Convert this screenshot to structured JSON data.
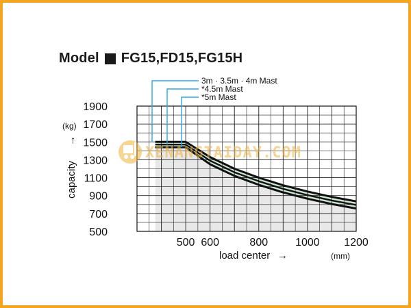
{
  "title": {
    "prefix": "Model",
    "models": "FG15,FD15,FG15H"
  },
  "watermark": "XENANGTAIDAY.COM",
  "colors": {
    "frame": "#f3a51f",
    "band_fill": "#cfe6d3",
    "below_fill": "#e8e8e8",
    "mast_line": "#29a8e0",
    "curve": "#111111"
  },
  "chart_data": {
    "type": "line",
    "title": "",
    "ylabel": "capacity",
    "yunit": "(kg)",
    "xlabel": "load center",
    "xunit": "(mm)",
    "xlim": [
      300,
      1200
    ],
    "ylim": [
      500,
      1900
    ],
    "x_ticks": [
      500,
      600,
      800,
      1000,
      1200
    ],
    "y_ticks": [
      500,
      700,
      900,
      1100,
      1300,
      1500,
      1700,
      1900
    ],
    "grid": true,
    "series": [
      {
        "name": "3m · 3.5m · 4m Mast",
        "x": [
          375,
          500,
          600,
          700,
          800,
          900,
          1000,
          1100,
          1200
        ],
        "y": [
          1500,
          1500,
          1330,
          1200,
          1100,
          1015,
          945,
          885,
          835
        ]
      },
      {
        "name": "*4.5m Mast",
        "x": [
          375,
          500,
          600,
          700,
          800,
          900,
          1000,
          1100,
          1200
        ],
        "y": [
          1470,
          1470,
          1290,
          1160,
          1060,
          975,
          905,
          845,
          795
        ]
      },
      {
        "name": "*5m Mast",
        "x": [
          375,
          500,
          600,
          700,
          800,
          900,
          1000,
          1100,
          1200
        ],
        "y": [
          1440,
          1440,
          1250,
          1120,
          1020,
          935,
          865,
          805,
          755
        ]
      }
    ]
  }
}
